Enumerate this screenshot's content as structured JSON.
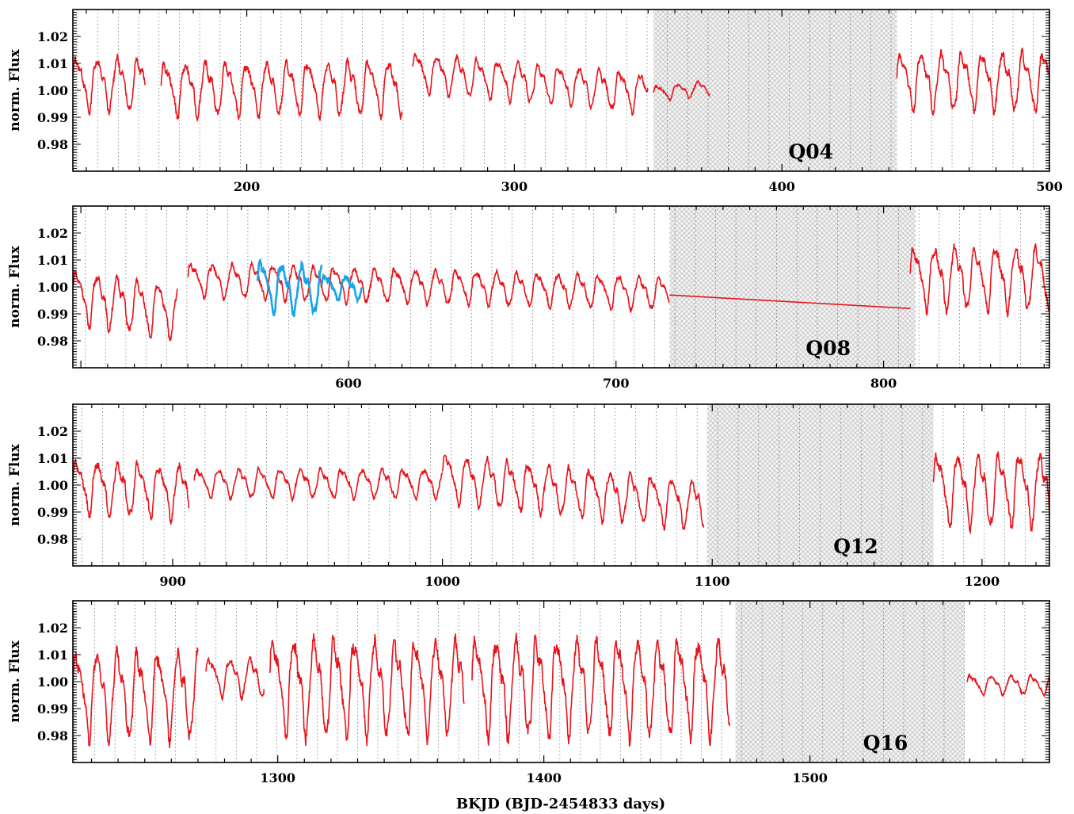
{
  "chart_data": {
    "type": "line",
    "xlabel": "BKJD (BJD-2454833 days)",
    "ylabel": "norm. Flux",
    "series_colors": {
      "main": "#e8141b",
      "highlight": "#1aa3e8"
    },
    "grid": "vertical dotted lines",
    "panels": [
      {
        "quarter_label": "Q04",
        "xlim": [
          135,
          500
        ],
        "ylim": [
          0.97,
          1.03
        ],
        "x_ticks": [
          "200",
          "300",
          "400",
          "500"
        ],
        "y_ticks": [
          "0.98",
          "0.99",
          "1.00",
          "1.01",
          "1.02"
        ],
        "shaded_range": [
          352,
          443
        ],
        "segments": [
          {
            "x_start": 135,
            "x_end": 162,
            "period": 7.6,
            "amp": 0.011,
            "base": 1.003,
            "trend": 0
          },
          {
            "x_start": 168,
            "x_end": 258,
            "period": 7.6,
            "amp": 0.011,
            "base": 1.001,
            "trend": 0.0005
          },
          {
            "x_start": 262,
            "x_end": 350,
            "period": 7.6,
            "amp": 0.008,
            "base": 1.007,
            "trend": -0.0075
          },
          {
            "x_start": 352,
            "x_end": 373,
            "period": 7.6,
            "amp": 0.003,
            "base": 0.999,
            "trend": 0.002
          },
          {
            "x_start": 443,
            "x_end": 500,
            "period": 7.6,
            "amp": 0.012,
            "base": 1.004,
            "trend": 0
          }
        ],
        "highlight_segments": []
      },
      {
        "quarter_label": "Q08",
        "xlim": [
          497,
          862
        ],
        "ylim": [
          0.97,
          1.03
        ],
        "x_ticks": [
          "600",
          "700",
          "800"
        ],
        "y_ticks": [
          "0.98",
          "0.99",
          "1.00",
          "1.01",
          "1.02"
        ],
        "shaded_range": [
          720,
          812
        ],
        "segments": [
          {
            "x_start": 497,
            "x_end": 536,
            "period": 7.6,
            "amp": 0.011,
            "base": 0.997,
            "trend": -0.006
          },
          {
            "x_start": 540,
            "x_end": 720,
            "period": 7.6,
            "amp": 0.007,
            "base": 1.003,
            "trend": -0.005
          },
          {
            "x_start": 810,
            "x_end": 862,
            "period": 7.6,
            "amp": 0.013,
            "base": 1.004,
            "trend": 0
          }
        ],
        "bridge_line": {
          "from": [
            720,
            0.997
          ],
          "to": [
            810,
            0.992
          ]
        },
        "highlight_segments": [
          {
            "x_start": 566,
            "x_end": 590,
            "period": 7.6,
            "amp": 0.01,
            "base": 1.001,
            "trend": -0.002
          },
          {
            "x_start": 590,
            "x_end": 605,
            "period": 7.6,
            "amp": 0.005,
            "base": 1.0,
            "trend": 0
          }
        ]
      },
      {
        "quarter_label": "Q12",
        "xlim": [
          863,
          1225
        ],
        "ylim": [
          0.97,
          1.03
        ],
        "x_ticks": [
          "900",
          "1000",
          "1100",
          "1200"
        ],
        "y_ticks": [
          "0.98",
          "0.99",
          "1.00",
          "1.01",
          "1.02"
        ],
        "shaded_range": [
          1098,
          1182
        ],
        "segments": [
          {
            "x_start": 863,
            "x_end": 906,
            "period": 7.6,
            "amp": 0.011,
            "base": 1.0,
            "trend": -0.002
          },
          {
            "x_start": 908,
            "x_end": 1000,
            "period": 7.6,
            "amp": 0.006,
            "base": 1.001,
            "trend": 0
          },
          {
            "x_start": 1000,
            "x_end": 1097,
            "period": 7.6,
            "amp": 0.01,
            "base": 1.003,
            "trend": -0.01
          },
          {
            "x_start": 1182,
            "x_end": 1225,
            "period": 7.6,
            "amp": 0.015,
            "base": 0.999,
            "trend": 0
          }
        ],
        "highlight_segments": []
      },
      {
        "quarter_label": "Q16",
        "xlim": [
          1223,
          1590
        ],
        "ylim": [
          0.97,
          1.03
        ],
        "x_ticks": [
          "1300",
          "1400",
          "1500"
        ],
        "y_ticks": [
          "0.98",
          "0.99",
          "1.00",
          "1.01",
          "1.02"
        ],
        "shaded_range": [
          1472,
          1558
        ],
        "segments": [
          {
            "x_start": 1223,
            "x_end": 1270,
            "period": 7.6,
            "amp": 0.018,
            "base": 0.996,
            "trend": 0
          },
          {
            "x_start": 1273,
            "x_end": 1295,
            "period": 7.6,
            "amp": 0.008,
            "base": 1.002,
            "trend": 0
          },
          {
            "x_start": 1297,
            "x_end": 1370,
            "period": 7.6,
            "amp": 0.02,
            "base": 0.999,
            "trend": 0
          },
          {
            "x_start": 1373,
            "x_end": 1470,
            "period": 7.6,
            "amp": 0.02,
            "base": 0.999,
            "trend": 0
          },
          {
            "x_start": 1559,
            "x_end": 1590,
            "period": 7.6,
            "amp": 0.004,
            "base": 0.999,
            "trend": 0
          }
        ],
        "highlight_segments": []
      }
    ]
  }
}
